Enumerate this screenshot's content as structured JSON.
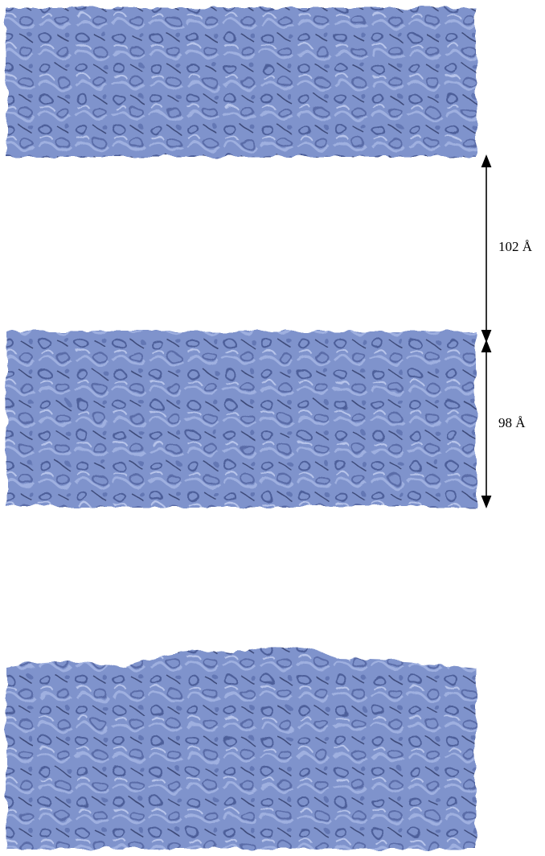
{
  "annotations": [
    {
      "label": "102 Å"
    },
    {
      "label": "98 Å"
    }
  ]
}
